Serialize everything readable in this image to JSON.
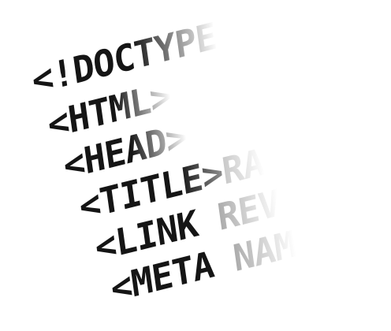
{
  "lines": [
    {
      "tag": "<!DOCTYPE",
      "rest": ""
    },
    {
      "tag": "<HTML>",
      "rest": ""
    },
    {
      "tag": "<HEAD>",
      "rest": ""
    },
    {
      "tag": "<TITLE>",
      "rest": "RA"
    },
    {
      "tag": "<LINK",
      "rest": " REV"
    },
    {
      "tag": "<META",
      "rest": " NAM"
    }
  ],
  "colors": {
    "background": "#ffffff",
    "text": "#151515",
    "faded": "#8a8a8a"
  }
}
